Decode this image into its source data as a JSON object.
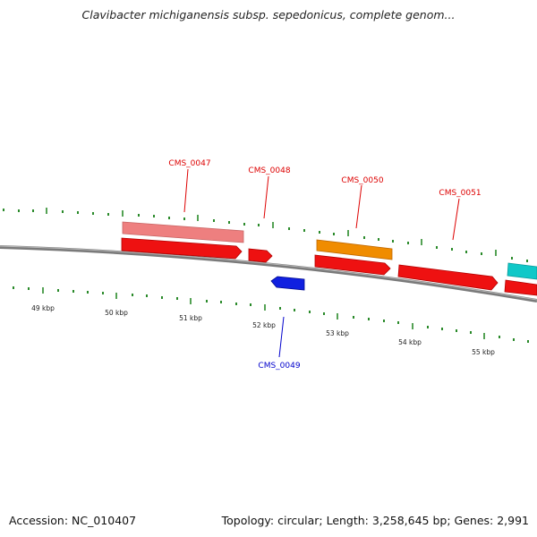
{
  "title": "Clavibacter michiganensis subsp. sepedonicus, complete genom...",
  "footer": {
    "accession": "Accession: NC_010407",
    "summary": "Topology: circular; Length: 3,258,645 bp; Genes: 2,991"
  },
  "scale_labels": [
    "49 kbp",
    "50 kbp",
    "51 kbp",
    "52 kbp",
    "53 kbp",
    "54 kbp",
    "55 kbp"
  ],
  "gene_labels": [
    {
      "id": "g47",
      "text": "CMS_0047",
      "color": "#dd0000"
    },
    {
      "id": "g48",
      "text": "CMS_0048",
      "color": "#dd0000"
    },
    {
      "id": "g50",
      "text": "CMS_0050",
      "color": "#dd0000"
    },
    {
      "id": "g51",
      "text": "CMS_0051",
      "color": "#dd0000"
    },
    {
      "id": "g49",
      "text": "CMS_0049",
      "color": "#0000cc"
    }
  ],
  "colors": {
    "cds": "#ee1111",
    "gene": "#ee7f7f",
    "misc": "#f08c00",
    "teal": "#10c8c8",
    "reverse": "#1020e0",
    "tick": "#2a8a2a",
    "backbone": "#8a8a8a"
  }
}
